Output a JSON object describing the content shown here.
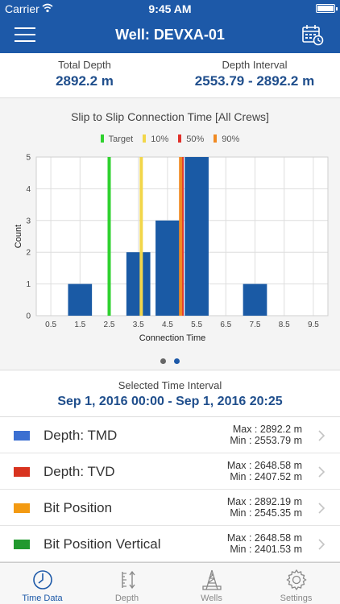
{
  "status_bar": {
    "carrier": "Carrier",
    "time": "9:45 AM"
  },
  "nav": {
    "title": "Well: DEVXA-01",
    "menu_icon": "hamburger-menu-icon",
    "calendar_icon": "calendar-clock-icon"
  },
  "summary": {
    "total_depth_label": "Total Depth",
    "total_depth_value": "2892.2 m",
    "depth_interval_label": "Depth Interval",
    "depth_interval_value": "2553.79 - 2892.2 m"
  },
  "chart_data": {
    "type": "bar",
    "title": "Slip to Slip Connection Time [All Crews]",
    "xlabel": "Connection Time",
    "ylabel": "Count",
    "x_ticks": [
      "0.5",
      "1.5",
      "2.5",
      "3.5",
      "4.5",
      "5.5",
      "6.5",
      "7.5",
      "8.5",
      "9.5"
    ],
    "y_ticks": [
      "0",
      "1",
      "2",
      "3",
      "4",
      "5"
    ],
    "xlim": [
      0,
      10
    ],
    "ylim": [
      0,
      5
    ],
    "categories": [
      "1.5",
      "3.5",
      "4.5",
      "5.5",
      "7.5"
    ],
    "values": [
      1,
      2,
      3,
      5,
      1
    ],
    "bar_color": "#1a5aa5",
    "grid": true,
    "legend_position": "top",
    "reference_lines": [
      {
        "name": "Target",
        "x": 2.5,
        "color": "#2fd12f"
      },
      {
        "name": "10%",
        "x": 3.6,
        "color": "#f2d64a"
      },
      {
        "name": "50%",
        "x": 5.0,
        "color": "#e0312b"
      },
      {
        "name": "90%",
        "x": 4.95,
        "color": "#f08a22"
      }
    ]
  },
  "pager": {
    "pages": 2,
    "active_page": 2,
    "inactive_color": "#666666",
    "active_color": "#1d59a8"
  },
  "interval": {
    "label": "Selected Time Interval",
    "value": "Sep 1, 2016 00:00 - Sep 1, 2016 20:25"
  },
  "list": [
    {
      "label": "Depth: TMD",
      "color": "#3b6fd1",
      "max": "Max : 2892.2 m",
      "min": "Min : 2553.79 m"
    },
    {
      "label": "Depth: TVD",
      "color": "#d8331f",
      "max": "Max : 2648.58 m",
      "min": "Min : 2407.52 m"
    },
    {
      "label": "Bit Position",
      "color": "#f39a12",
      "max": "Max : 2892.19 m",
      "min": "Min : 2545.35 m"
    },
    {
      "label": "Bit Position Vertical",
      "color": "#22992e",
      "max": "Max : 2648.58 m",
      "min": "Min : 2401.53 m"
    }
  ],
  "tabs": [
    {
      "label": "Time Data",
      "icon": "clock-icon",
      "active": true
    },
    {
      "label": "Depth",
      "icon": "depth-ruler-icon",
      "active": false
    },
    {
      "label": "Wells",
      "icon": "oil-rig-icon",
      "active": false
    },
    {
      "label": "Settings",
      "icon": "gear-icon",
      "active": false
    }
  ],
  "colors": {
    "brand": "#1d59a8",
    "value_text": "#1f4e8c",
    "tab_active": "#1d59a8",
    "tab_inactive": "#888888"
  }
}
